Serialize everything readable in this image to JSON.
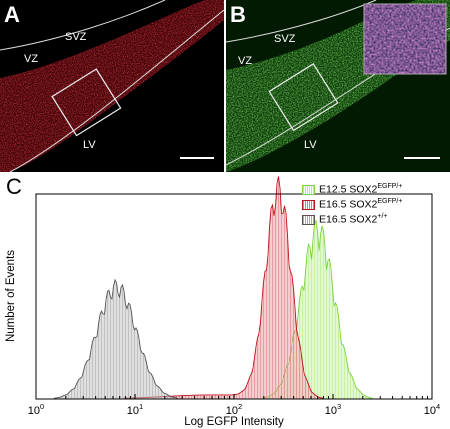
{
  "panels": {
    "a": {
      "label": "A",
      "regions": {
        "svz": "SVZ",
        "vz": "VZ",
        "lv": "LV"
      }
    },
    "b": {
      "label": "B",
      "regions": {
        "svz": "SVZ",
        "vz": "VZ",
        "lv": "LV"
      }
    },
    "c": {
      "label": "C"
    }
  },
  "colors": {
    "red": "#c0141c",
    "green": "#7ad53a",
    "gray": "#555555"
  },
  "chart_data": {
    "type": "histogram",
    "xlabel": "Log EGFP Intensity",
    "ylabel": "Number of Events",
    "xscale": "log",
    "xlim": [
      1,
      10000
    ],
    "x_ticks": [
      {
        "base": "10",
        "exp": "0"
      },
      {
        "base": "10",
        "exp": "1"
      },
      {
        "base": "10",
        "exp": "2"
      },
      {
        "base": "10",
        "exp": "3"
      },
      {
        "base": "10",
        "exp": "4"
      }
    ],
    "legend_position": "top-right",
    "series": [
      {
        "name": "E12.5 SOX2",
        "sup": "EGFP/+",
        "color": "#7ad53a",
        "peak_x": 700,
        "peak_rel": 0.8,
        "spread_log": 0.17
      },
      {
        "name": "E16.5 SOX2",
        "sup": "EGFP/+",
        "color": "#c0141c",
        "peak_x": 280,
        "peak_rel": 0.98,
        "spread_log": 0.13
      },
      {
        "name": "E16.5 SOX2",
        "sup": "+/+",
        "color": "#555555",
        "peak_x": 6.5,
        "peak_rel": 0.53,
        "spread_log": 0.2
      }
    ]
  }
}
